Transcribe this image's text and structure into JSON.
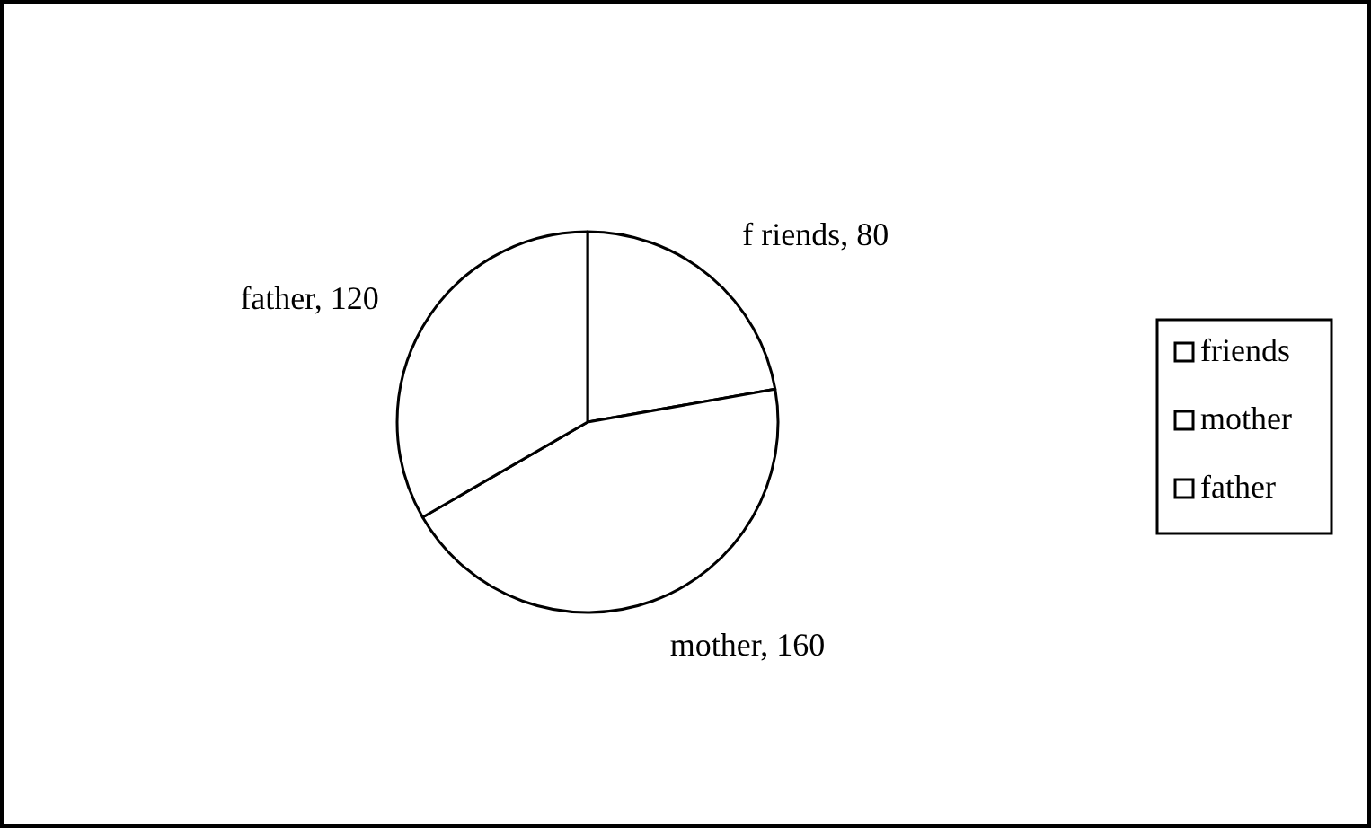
{
  "chart_data": {
    "type": "pie",
    "categories": [
      "friends",
      "mother",
      "father"
    ],
    "values": [
      80,
      160,
      120
    ],
    "colors": [
      "#ffffff",
      "#ffffff",
      "#ffffff"
    ],
    "value_labels": [
      "f riends, 80",
      "mother, 160",
      "father, 120"
    ],
    "legend": "right"
  }
}
